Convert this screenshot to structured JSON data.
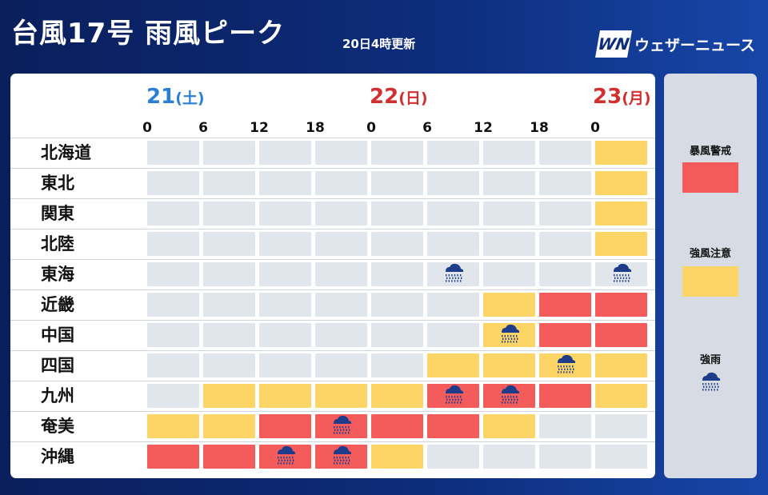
{
  "header": {
    "title": "台風17号 雨風ピーク",
    "updated": "20日4時更新",
    "brand_logo": "WN",
    "brand_name": "ウェザーニュース"
  },
  "dates": [
    {
      "num": "21",
      "day": "(土)",
      "color": "#2a7fd4"
    },
    {
      "num": "22",
      "day": "(日)",
      "color": "#d32f2f"
    },
    {
      "num": "23",
      "day": "(月)",
      "color": "#d32f2f"
    }
  ],
  "hours": [
    "0",
    "6",
    "12",
    "18",
    "0",
    "6",
    "12",
    "18",
    "0"
  ],
  "regions": [
    {
      "name": "北海道",
      "cells": [
        "none",
        "none",
        "none",
        "none",
        "none",
        "none",
        "none",
        "none",
        "caution"
      ],
      "rain": []
    },
    {
      "name": "東北",
      "cells": [
        "none",
        "none",
        "none",
        "none",
        "none",
        "none",
        "none",
        "none",
        "caution"
      ],
      "rain": []
    },
    {
      "name": "関東",
      "cells": [
        "none",
        "none",
        "none",
        "none",
        "none",
        "none",
        "none",
        "none",
        "caution"
      ],
      "rain": []
    },
    {
      "name": "北陸",
      "cells": [
        "none",
        "none",
        "none",
        "none",
        "none",
        "none",
        "none",
        "none",
        "caution"
      ],
      "rain": []
    },
    {
      "name": "東海",
      "cells": [
        "none",
        "none",
        "none",
        "none",
        "none",
        "none",
        "none",
        "none",
        "none"
      ],
      "rain": [
        5,
        8
      ]
    },
    {
      "name": "近畿",
      "cells": [
        "none",
        "none",
        "none",
        "none",
        "none",
        "none",
        "caution",
        "warning",
        "warning"
      ],
      "rain": []
    },
    {
      "name": "中国",
      "cells": [
        "none",
        "none",
        "none",
        "none",
        "none",
        "none",
        "caution",
        "warning",
        "warning"
      ],
      "rain": [
        6
      ]
    },
    {
      "name": "四国",
      "cells": [
        "none",
        "none",
        "none",
        "none",
        "none",
        "caution",
        "caution",
        "caution",
        "caution"
      ],
      "rain": [
        7
      ]
    },
    {
      "name": "九州",
      "cells": [
        "none",
        "caution",
        "caution",
        "caution",
        "caution",
        "warning",
        "warning",
        "warning",
        "caution"
      ],
      "rain": [
        5,
        6
      ]
    },
    {
      "name": "奄美",
      "cells": [
        "caution",
        "caution",
        "warning",
        "warning",
        "warning",
        "warning",
        "caution",
        "none",
        "none"
      ],
      "rain": [
        3
      ]
    },
    {
      "name": "沖縄",
      "cells": [
        "warning",
        "warning",
        "warning",
        "warning",
        "caution",
        "none",
        "none",
        "none",
        "none"
      ],
      "rain": [
        2,
        3
      ]
    }
  ],
  "legend": {
    "warning_label": "暴風警戒",
    "caution_label": "強風注意",
    "rain_label": "強雨",
    "rain_icon": "rain-cloud-icon"
  },
  "colors": {
    "warning": "#f45b5b",
    "caution": "#fcd566",
    "none": "#e1e5ec",
    "icon": "#1f3c8a"
  }
}
